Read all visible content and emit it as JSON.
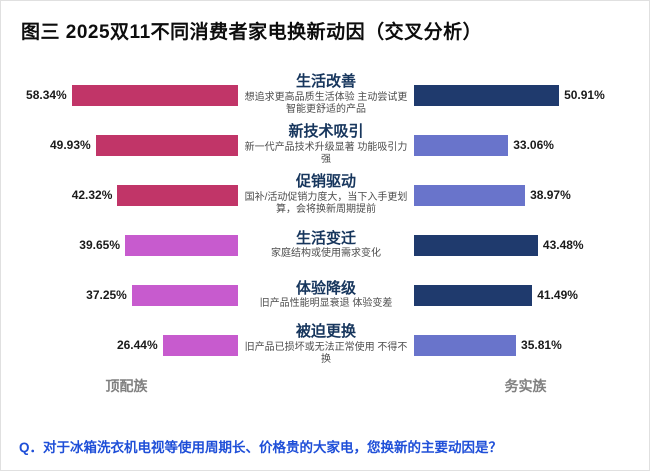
{
  "title": "图三 2025双11不同消费者家电换新动因（交叉分析）",
  "groups": {
    "left": "顶配族",
    "right": "务实族"
  },
  "question": "Q．对于冰箱洗衣机电视等使用周期长、价格贵的大家电，您换新的主要动因是？",
  "colors": {
    "left_dark_pink": "#c13568",
    "left_magenta": "#c75bce",
    "right_navy": "#1f3a6d",
    "right_periwinkle": "#6974cb"
  },
  "chart_data": {
    "type": "bar",
    "orientation": "diverging-horizontal",
    "value_suffix": "%",
    "xmax": 60,
    "grid": false,
    "legend_position": "bottom",
    "categories": [
      "生活改善",
      "新技术吸引",
      "促销驱动",
      "生活变迁",
      "体验降级",
      "被迫更换"
    ],
    "descriptions": [
      "想追求更高品质生活体验 主动尝试更智能更舒适的产品",
      "新一代产品技术升级显著 功能吸引力强",
      "国补/活动促销力度大，当下入手更划算，会将换新周期提前",
      "家庭结构或使用需求变化",
      "旧产品性能明显衰退 体验变差",
      "旧产品已损坏或无法正常使用 不得不换"
    ],
    "series": [
      {
        "name": "顶配族",
        "side": "left",
        "values": [
          58.34,
          49.93,
          42.32,
          39.65,
          37.25,
          26.44
        ],
        "colors": [
          "#c13568",
          "#c13568",
          "#c13568",
          "#c75bce",
          "#c75bce",
          "#c75bce"
        ]
      },
      {
        "name": "务实族",
        "side": "right",
        "values": [
          50.91,
          33.06,
          38.97,
          43.48,
          41.49,
          35.81
        ],
        "colors": [
          "#1f3a6d",
          "#6974cb",
          "#6974cb",
          "#1f3a6d",
          "#1f3a6d",
          "#6974cb"
        ]
      }
    ]
  }
}
